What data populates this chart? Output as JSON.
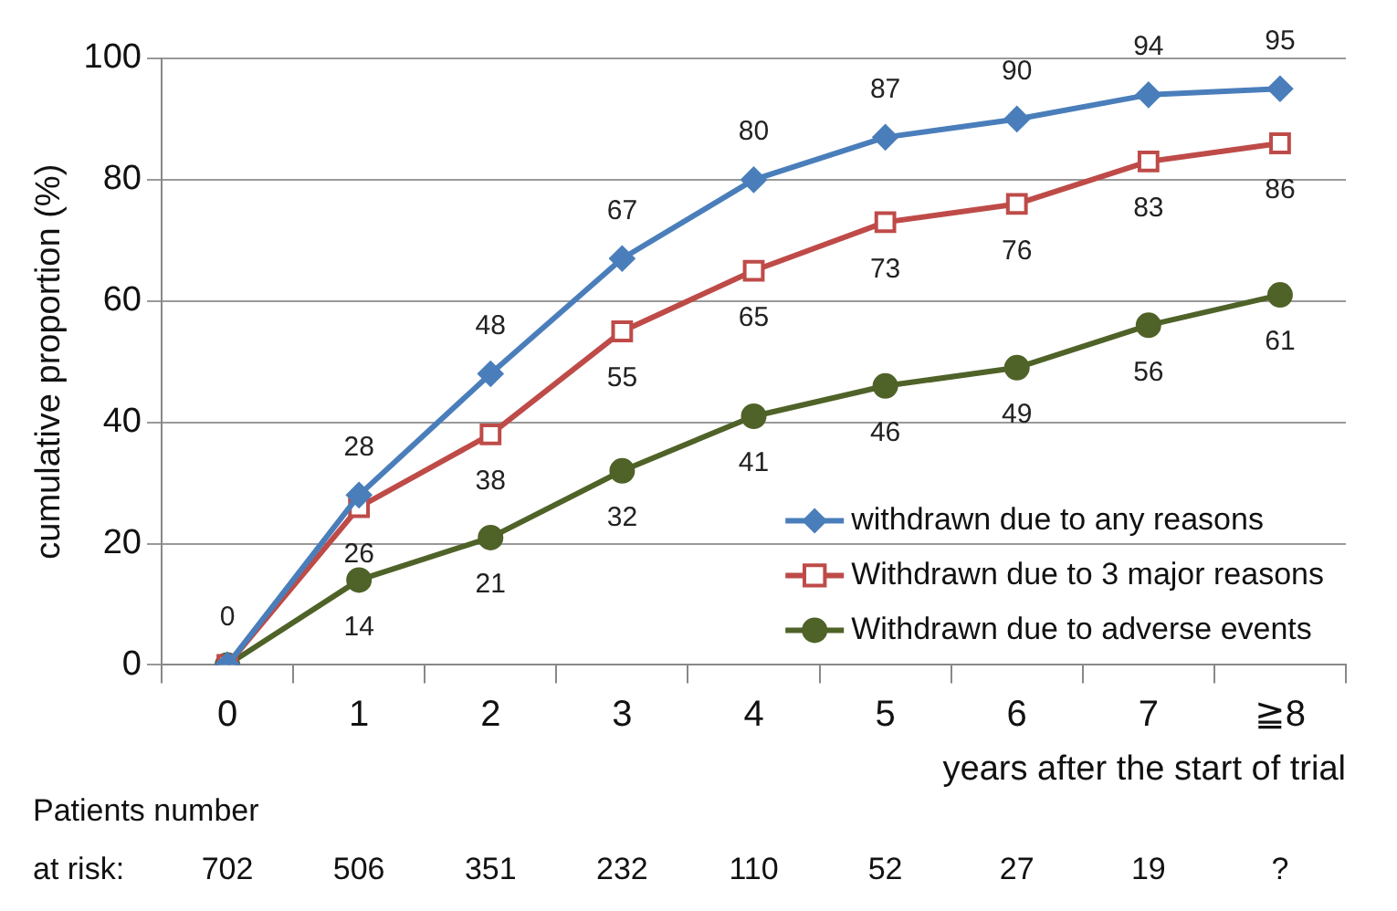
{
  "chart_data": {
    "type": "line",
    "categories": [
      "0",
      "1",
      "2",
      "3",
      "4",
      "5",
      "6",
      "7",
      "≧8"
    ],
    "ylabel": "cumulative proportion (%)",
    "xlabel": "years after the start of trial",
    "ylim": [
      0,
      100
    ],
    "yticks": [
      0,
      20,
      40,
      60,
      80,
      100
    ],
    "grid": "y",
    "legend": "bottom right",
    "line_style": "solid",
    "series": [
      {
        "name": "withdrawn due to any reasons",
        "color": "#4a7ebb",
        "marker": "diamond",
        "values": [
          0,
          28,
          48,
          67,
          80,
          87,
          90,
          94,
          95
        ],
        "value_labels": [
          "0",
          "28",
          "48",
          "67",
          "80",
          "87",
          "90",
          "94",
          "95"
        ]
      },
      {
        "name": "Withdrawn due to 3 major reasons",
        "color": "#be4b48",
        "marker": "square",
        "values": [
          0,
          26,
          38,
          55,
          65,
          73,
          76,
          83,
          86
        ],
        "value_labels": [
          null,
          "26",
          "38",
          "55",
          "65",
          "73",
          "76",
          "83",
          "86"
        ]
      },
      {
        "name": "Withdrawn due to adverse events",
        "color": "#4f6228",
        "marker": "circle",
        "values": [
          0,
          14,
          21,
          32,
          41,
          46,
          49,
          56,
          61
        ],
        "value_labels": [
          null,
          "14",
          "21",
          "32",
          "41",
          "46",
          "49",
          "56",
          "61"
        ]
      }
    ],
    "annotations": [
      "Patients number",
      "at risk:",
      "702",
      "506",
      "351",
      "232",
      "110",
      "52",
      "27",
      "19",
      "?"
    ]
  }
}
